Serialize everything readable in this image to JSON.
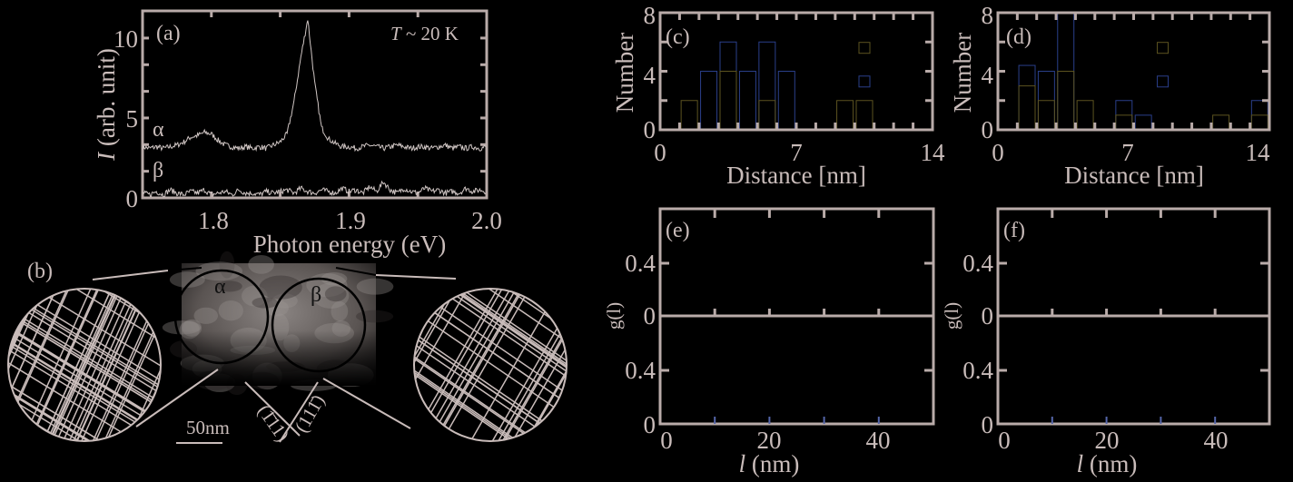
{
  "colors": {
    "background": "#000000",
    "axis": "#b9aba9",
    "text": "#c9bcba",
    "series_blue": "#2a3f8a",
    "series_olive": "#5c5320"
  },
  "chart_data": [
    {
      "panel": "(a)",
      "type": "line",
      "annotation": "T ~ 20 K",
      "annotation_italic": "T",
      "annotation_rest": " ~ 20 K",
      "xlabel": "Photon energy (eV)",
      "ylabel_italic": "I",
      "ylabel_rest": " (arb. unit)",
      "xlim": [
        1.75,
        2.0
      ],
      "ylim": [
        0,
        11.7
      ],
      "xticks": [
        "1.8",
        "1.9",
        "2.0"
      ],
      "yticks": [
        "0",
        "5",
        "10"
      ],
      "x": [
        1.75,
        1.755,
        1.76,
        1.765,
        1.77,
        1.775,
        1.78,
        1.785,
        1.79,
        1.795,
        1.8,
        1.805,
        1.81,
        1.815,
        1.82,
        1.825,
        1.83,
        1.835,
        1.84,
        1.845,
        1.85,
        1.855,
        1.86,
        1.865,
        1.87,
        1.875,
        1.88,
        1.885,
        1.89,
        1.895,
        1.9,
        1.905,
        1.91,
        1.915,
        1.92,
        1.925,
        1.93,
        1.935,
        1.94,
        1.945,
        1.95,
        1.955,
        1.96,
        1.965,
        1.97,
        1.975,
        1.98,
        1.985,
        1.99,
        1.995,
        2.0
      ],
      "series": [
        {
          "name": "α",
          "values": [
            3.2,
            3.1,
            3.2,
            3.1,
            3.2,
            3.3,
            3.5,
            3.8,
            3.9,
            4.1,
            4.0,
            3.6,
            3.3,
            3.2,
            3.1,
            3.2,
            3.1,
            3.2,
            3.1,
            3.3,
            3.5,
            4.0,
            6.0,
            8.8,
            11.2,
            7.2,
            4.4,
            3.7,
            3.4,
            3.2,
            3.2,
            3.1,
            3.2,
            3.3,
            3.2,
            3.1,
            3.2,
            3.3,
            3.2,
            3.1,
            3.2,
            3.2,
            3.1,
            3.2,
            3.3,
            3.1,
            3.2,
            3.1,
            3.2,
            3.1,
            3.2
          ]
        },
        {
          "name": "β",
          "values": [
            0.3,
            0.2,
            0.4,
            0.2,
            0.5,
            0.3,
            0.2,
            0.4,
            0.3,
            0.5,
            0.2,
            0.3,
            0.4,
            0.2,
            0.5,
            0.3,
            0.3,
            0.2,
            0.4,
            0.3,
            0.4,
            0.5,
            0.3,
            0.6,
            0.4,
            0.3,
            0.5,
            0.4,
            0.3,
            0.6,
            0.4,
            0.5,
            0.3,
            0.7,
            0.4,
            1.0,
            0.5,
            0.3,
            0.6,
            0.4,
            0.3,
            0.6,
            0.4,
            0.5,
            0.3,
            0.4,
            0.3,
            0.6,
            0.4,
            0.5,
            0.4
          ]
        }
      ]
    },
    {
      "panel": "(c)",
      "type": "bar",
      "xlabel": "Distance [nm]",
      "ylabel": "Number",
      "xlim": [
        0,
        14
      ],
      "ylim": [
        0,
        8
      ],
      "xticks": [
        "0",
        "7",
        "14"
      ],
      "yticks": [
        "0",
        "4",
        "8"
      ],
      "bin_centers": [
        1.5,
        2.5,
        3.5,
        4.5,
        5.5,
        6.5,
        9.5,
        10.5
      ],
      "series": [
        {
          "color": "#2a3f8a",
          "values": [
            0,
            4,
            6,
            4,
            6,
            4,
            0,
            0
          ]
        },
        {
          "color": "#5c5320",
          "values": [
            2,
            0,
            4,
            0,
            2,
            0,
            2,
            2
          ]
        }
      ],
      "legend_marks_at": 10.5
    },
    {
      "panel": "(d)",
      "type": "bar",
      "xlabel": "Distance [nm]",
      "ylabel": "Number",
      "xlim": [
        0,
        14
      ],
      "ylim": [
        0,
        8
      ],
      "xticks": [
        "0",
        "7",
        "14"
      ],
      "yticks": [
        "0",
        "4",
        "8"
      ],
      "bin_centers": [
        1.5,
        2.5,
        3.5,
        4.5,
        6.5,
        7.5,
        11.5,
        13.5
      ],
      "series": [
        {
          "color": "#2a3f8a",
          "values": [
            4.4,
            4,
            8,
            0,
            2,
            1,
            0,
            2
          ]
        },
        {
          "color": "#5c5320",
          "values": [
            3,
            2,
            4,
            2,
            1,
            0,
            1,
            1
          ]
        }
      ],
      "legend_marks_at": 8.5
    },
    {
      "panel": "(e)",
      "type": "line",
      "xlabel_italic": "l",
      "xlabel_rest": " (nm)",
      "ylabel": "g(l)",
      "xlim": [
        0,
        50
      ],
      "xticks": [
        "0",
        "20",
        "40"
      ],
      "yticks_top": [
        "0.4",
        "0"
      ],
      "yticks_bottom": [
        "0.4",
        "0"
      ],
      "series": []
    },
    {
      "panel": "(f)",
      "type": "line",
      "xlabel_italic": "l",
      "xlabel_rest": " (nm)",
      "ylabel": "g(l)",
      "xlim": [
        0,
        50
      ],
      "xticks": [
        "0",
        "20",
        "40"
      ],
      "yticks_top": [
        "0.4",
        "0"
      ],
      "yticks_bottom": [
        "0.4",
        "0"
      ],
      "series": []
    }
  ],
  "image_panel": {
    "label": "(b)",
    "alpha": "α",
    "beta": "β",
    "scale_bar": "50nm",
    "plane_left": "(1̄11)",
    "plane_right": "(111̄)"
  }
}
